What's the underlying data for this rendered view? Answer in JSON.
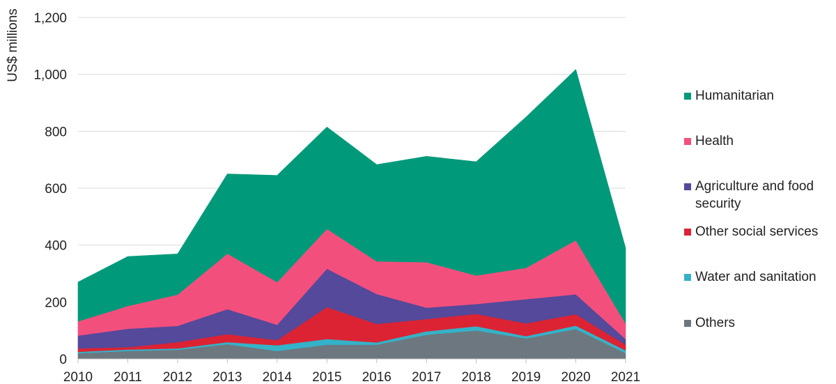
{
  "chart_data": {
    "type": "area",
    "stacked": true,
    "ylabel": "US$ millions",
    "xlabel": "",
    "ylim": [
      0,
      1200
    ],
    "yticks": [
      0,
      200,
      400,
      600,
      800,
      1000,
      1200
    ],
    "ytick_labels": [
      "0",
      "200",
      "400",
      "600",
      "800",
      "1,000",
      "1,200"
    ],
    "grid": true,
    "legend_position": "right",
    "x": [
      "2010",
      "2011",
      "2012",
      "2013",
      "2014",
      "2015",
      "2016",
      "2017",
      "2018",
      "2019",
      "2020",
      "2021"
    ],
    "series": [
      {
        "name": "Others",
        "color": "#6d777f",
        "values": [
          20,
          28,
          32,
          52,
          28,
          50,
          50,
          85,
          100,
          72,
          105,
          20
        ]
      },
      {
        "name": "Water and sanitation",
        "color": "#34b2c8",
        "values": [
          5,
          5,
          5,
          7,
          20,
          20,
          8,
          12,
          15,
          8,
          12,
          10
        ]
      },
      {
        "name": "Other social services",
        "color": "#dc2333",
        "values": [
          12,
          8,
          22,
          28,
          18,
          112,
          65,
          43,
          43,
          45,
          40,
          20
        ]
      },
      {
        "name": "Agriculture and food security",
        "color": "#54499a",
        "values": [
          45,
          65,
          57,
          88,
          54,
          135,
          105,
          40,
          35,
          85,
          70,
          20
        ]
      },
      {
        "name": "Health",
        "color": "#f34f7d",
        "values": [
          50,
          80,
          110,
          195,
          150,
          140,
          115,
          160,
          100,
          110,
          190,
          55
        ]
      },
      {
        "name": "Humanitarian",
        "color": "#009a7a",
        "values": [
          138,
          174,
          143,
          280,
          375,
          358,
          340,
          372,
          400,
          530,
          600,
          265
        ]
      }
    ]
  },
  "legend": [
    {
      "label": "Humanitarian",
      "color": "#009a7a"
    },
    {
      "label": "Health",
      "color": "#f34f7d"
    },
    {
      "label": "Agriculture and food security",
      "color": "#54499a"
    },
    {
      "label": "Other social services",
      "color": "#dc2333"
    },
    {
      "label": "Water and sanitation",
      "color": "#34b2c8"
    },
    {
      "label": "Others",
      "color": "#6d777f"
    }
  ]
}
